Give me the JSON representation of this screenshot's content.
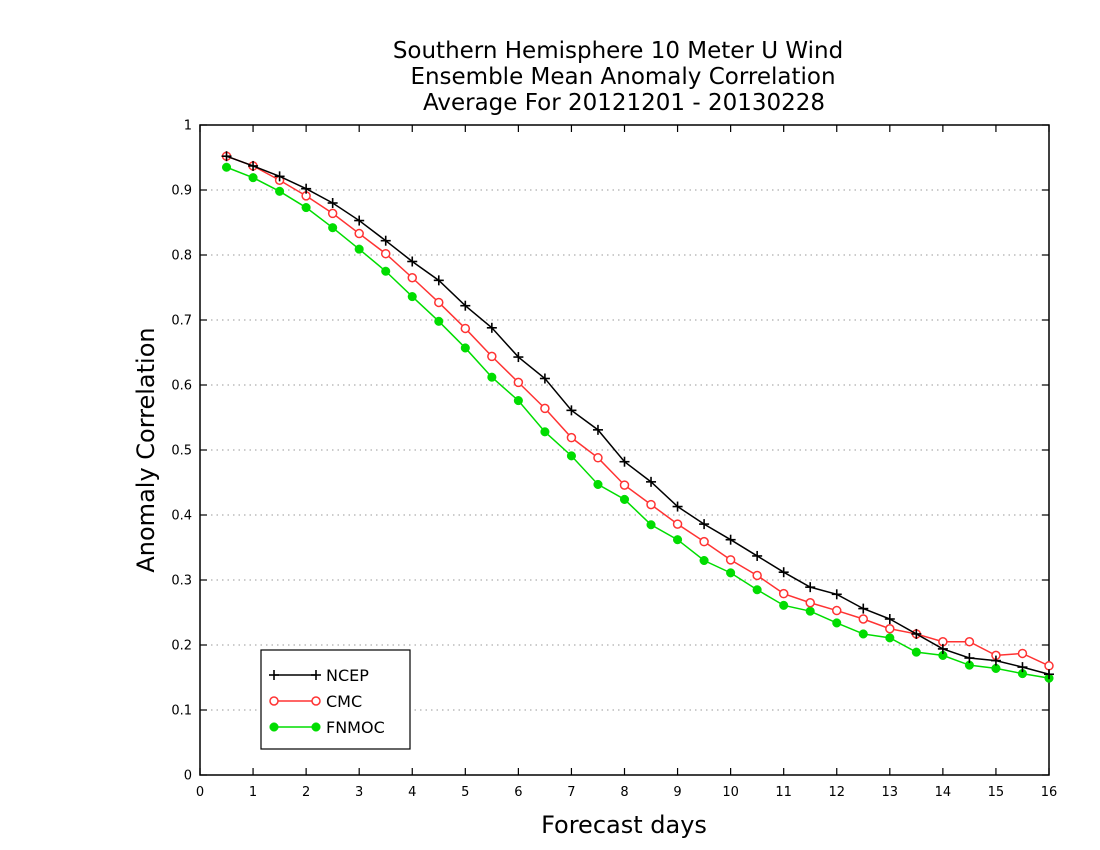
{
  "chart_data": {
    "type": "line",
    "title": [
      "Southern Hemisphere 10 Meter U Wind",
      "Ensemble Mean Anomaly Correlation",
      "Average For 20121201 - 20130228"
    ],
    "xlabel": "Forecast days",
    "ylabel": "Anomaly Correlation",
    "xlim": [
      0,
      16
    ],
    "ylim": [
      0,
      1
    ],
    "xticks": [
      "0",
      "1",
      "2",
      "3",
      "4",
      "5",
      "6",
      "7",
      "8",
      "9",
      "10",
      "11",
      "12",
      "13",
      "14",
      "15",
      "16"
    ],
    "yticks": [
      "0",
      "0.1",
      "0.2",
      "0.3",
      "0.4",
      "0.5",
      "0.6",
      "0.7",
      "0.8",
      "0.9",
      "1"
    ],
    "grid": "horizontal dotted",
    "legend_position": "bottom-left",
    "x": [
      0.5,
      1,
      1.5,
      2,
      2.5,
      3,
      3.5,
      4,
      4.5,
      5,
      5.5,
      6,
      6.5,
      7,
      7.5,
      8,
      8.5,
      9,
      9.5,
      10,
      10.5,
      11,
      11.5,
      12,
      12.5,
      13,
      13.5,
      14,
      14.5,
      15,
      15.5,
      16
    ],
    "series": [
      {
        "name": "NCEP",
        "color": "#000000",
        "marker": "plus",
        "values": [
          0.952,
          0.937,
          0.921,
          0.902,
          0.88,
          0.853,
          0.822,
          0.79,
          0.761,
          0.722,
          0.688,
          0.643,
          0.61,
          0.561,
          0.531,
          0.482,
          0.451,
          0.413,
          0.386,
          0.362,
          0.337,
          0.312,
          0.289,
          0.278,
          0.256,
          0.24,
          0.217,
          0.194,
          0.18,
          0.176,
          0.166,
          0.155
        ]
      },
      {
        "name": "CMC",
        "color": "#ff3333",
        "marker": "open-circle",
        "values": [
          0.952,
          0.937,
          0.915,
          0.891,
          0.864,
          0.833,
          0.802,
          0.765,
          0.727,
          0.687,
          0.644,
          0.604,
          0.564,
          0.519,
          0.488,
          0.446,
          0.416,
          0.386,
          0.359,
          0.331,
          0.307,
          0.279,
          0.265,
          0.253,
          0.24,
          0.225,
          0.217,
          0.205,
          0.205,
          0.184,
          0.187,
          0.168
        ]
      },
      {
        "name": "FNMOC",
        "color": "#00dd00",
        "marker": "filled-circle",
        "values": [
          0.935,
          0.919,
          0.898,
          0.873,
          0.842,
          0.809,
          0.775,
          0.736,
          0.698,
          0.657,
          0.612,
          0.576,
          0.528,
          0.491,
          0.447,
          0.424,
          0.385,
          0.362,
          0.33,
          0.311,
          0.285,
          0.261,
          0.252,
          0.234,
          0.217,
          0.211,
          0.189,
          0.184,
          0.169,
          0.164,
          0.156,
          0.149
        ]
      }
    ]
  }
}
